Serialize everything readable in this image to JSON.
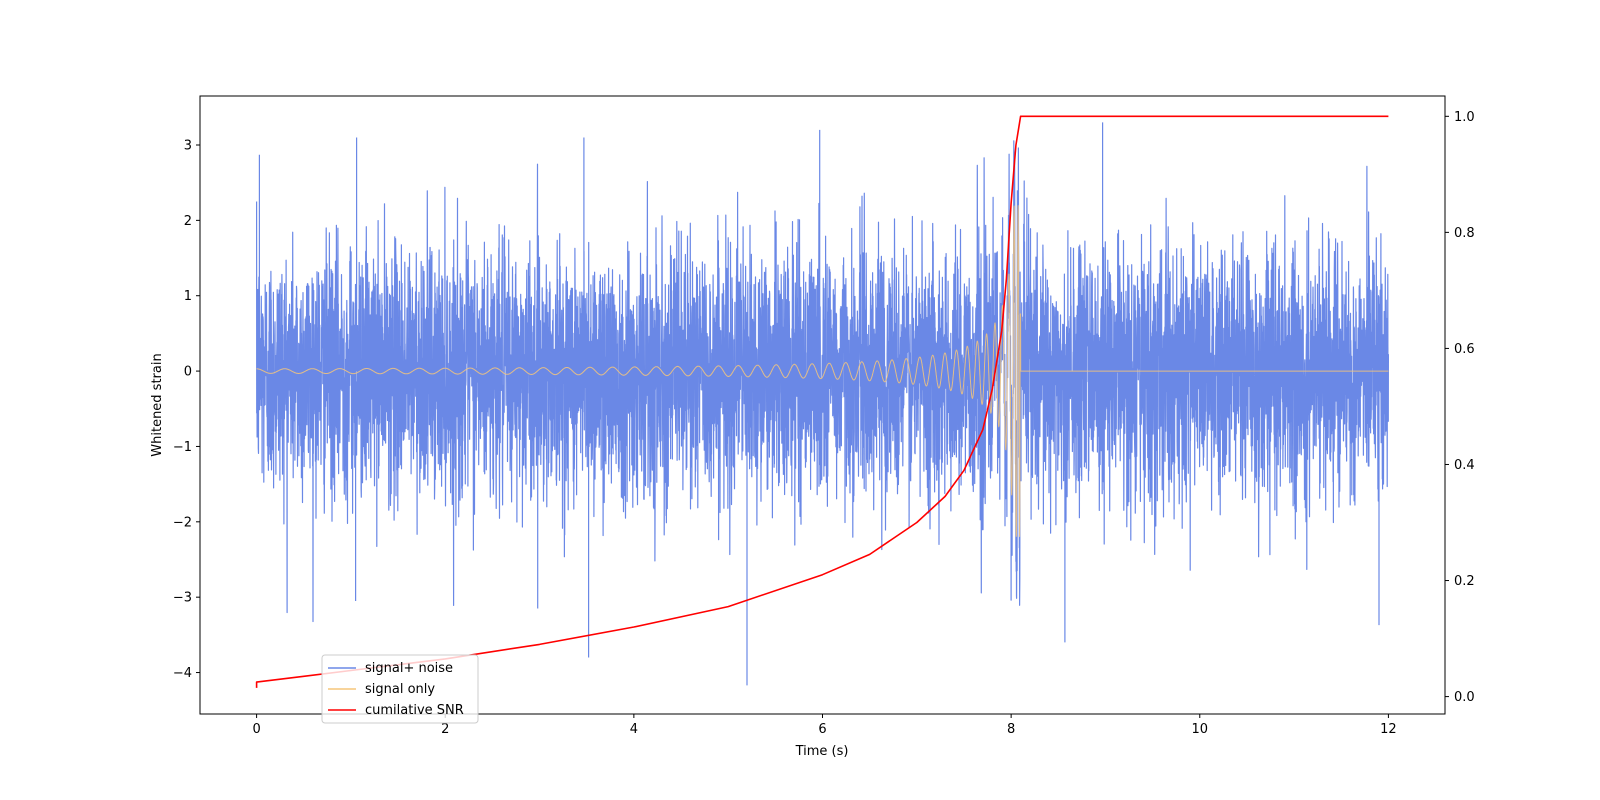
{
  "chart_data": {
    "type": "line",
    "title": "",
    "xlabel": "Time (s)",
    "ylabel": "Whitened strain",
    "ylabel_right": "",
    "xlim": [
      -0.6,
      12.6
    ],
    "ylim": [
      -4.55,
      3.65
    ],
    "ylim_right": [
      -0.03,
      1.035
    ],
    "x_ticks": [
      0,
      2,
      4,
      6,
      8,
      10,
      12
    ],
    "y_ticks": [
      -4,
      -3,
      -2,
      -1,
      0,
      1,
      2,
      3
    ],
    "y_ticks_right": [
      0.0,
      0.2,
      0.4,
      0.6,
      0.8,
      1.0
    ],
    "x_tick_labels": [
      "0",
      "2",
      "4",
      "6",
      "8",
      "10",
      "12"
    ],
    "y_tick_labels": [
      "−4",
      "−3",
      "−2",
      "−1",
      "0",
      "1",
      "2",
      "3"
    ],
    "y_tick_labels_right": [
      "0.0",
      "0.2",
      "0.4",
      "0.6",
      "0.8",
      "1.0"
    ],
    "grid": false,
    "legend_position": "lower-left",
    "series": [
      {
        "name": "signal+ noise",
        "color": "#6a88e6",
        "axis": "left",
        "description": "white Gaussian noise plus chirp, sampled 0–12 s",
        "x_range": [
          0,
          12
        ],
        "noise_std": 0.8,
        "peaks": [
          {
            "x": 0.03,
            "y": 2.87
          },
          {
            "x": 1.06,
            "y": 3.1
          },
          {
            "x": 3.47,
            "y": 3.1
          },
          {
            "x": 5.97,
            "y": 3.2
          },
          {
            "x": 8.97,
            "y": 3.3
          },
          {
            "x": 3.52,
            "y": -3.8
          },
          {
            "x": 5.2,
            "y": -4.17
          },
          {
            "x": 8.57,
            "y": -3.6
          },
          {
            "x": 11.9,
            "y": -3.37
          },
          {
            "x": 1.05,
            "y": -3.05
          },
          {
            "x": 2.98,
            "y": -3.15
          }
        ]
      },
      {
        "name": "signal only",
        "color": "#f5c57a",
        "axis": "left",
        "description": "inspiral chirp ending at merger near t = 8.1 s",
        "x_range": [
          0,
          12
        ],
        "merger_time": 8.1,
        "amplitude_start": 0.03,
        "amplitude_peak": 2.2
      },
      {
        "name": "cumilative SNR",
        "color": "#ff0000",
        "axis": "right",
        "x": [
          0.0,
          0.0,
          0.5,
          1.0,
          2.0,
          3.0,
          4.0,
          5.0,
          6.0,
          6.5,
          7.0,
          7.3,
          7.5,
          7.7,
          7.8,
          7.9,
          7.95,
          8.0,
          8.05,
          8.1,
          12.0
        ],
        "y": [
          0.015,
          0.025,
          0.035,
          0.045,
          0.065,
          0.09,
          0.12,
          0.155,
          0.21,
          0.245,
          0.3,
          0.345,
          0.39,
          0.46,
          0.53,
          0.63,
          0.72,
          0.85,
          0.95,
          1.0,
          1.0
        ]
      }
    ]
  }
}
